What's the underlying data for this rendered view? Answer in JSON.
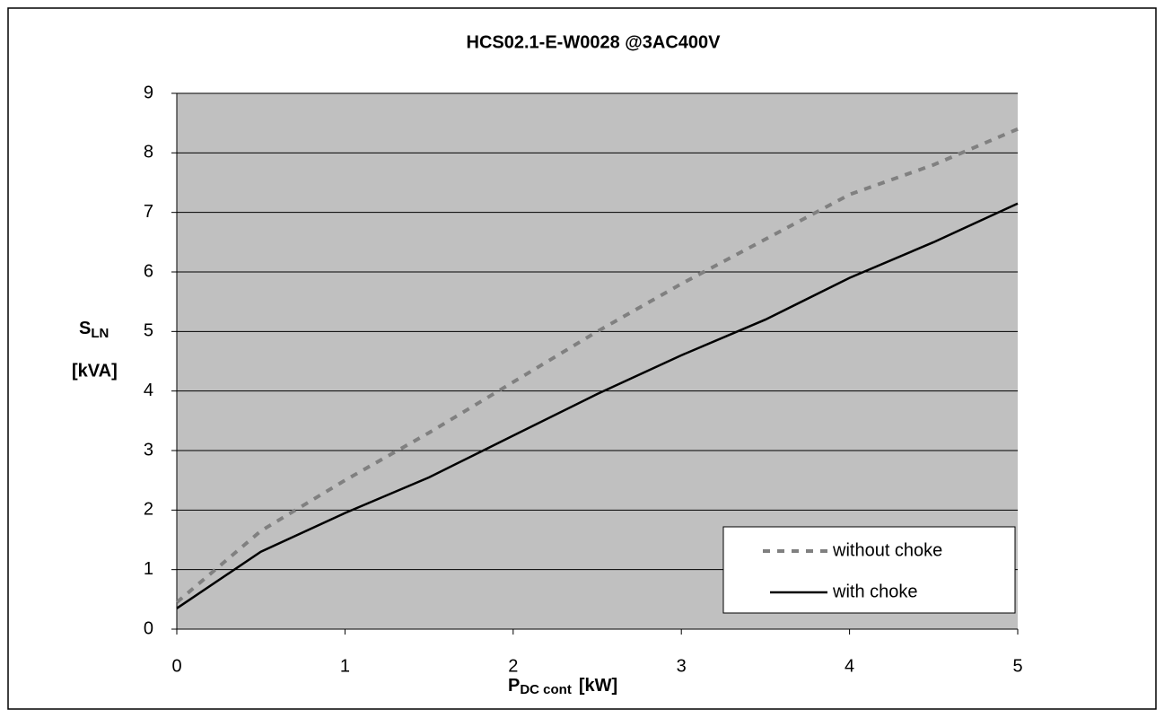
{
  "chart_data": {
    "type": "line",
    "title": "HCS02.1-E-W0028 @3AC400V",
    "y_label": {
      "main": "S",
      "sub": "LN",
      "unit": "[kVA]"
    },
    "x_label": {
      "main": "P",
      "sub": "DC cont",
      "unit": "[kW]"
    },
    "x": [
      0,
      0.5,
      1,
      1.5,
      2,
      2.5,
      3,
      3.5,
      4,
      4.5,
      5
    ],
    "series": [
      {
        "name": "without choke",
        "color": "#808080",
        "dash": true,
        "values": [
          0.45,
          1.65,
          2.5,
          3.3,
          4.15,
          5.0,
          5.8,
          6.55,
          7.3,
          7.8,
          8.4
        ]
      },
      {
        "name": "with choke",
        "color": "#000000",
        "dash": false,
        "values": [
          0.35,
          1.3,
          1.95,
          2.55,
          3.25,
          3.95,
          4.6,
          5.2,
          5.9,
          6.5,
          7.15
        ]
      }
    ],
    "xlim": [
      0,
      5
    ],
    "xticks": [
      0,
      1,
      2,
      3,
      4,
      5
    ],
    "ylim": [
      0,
      9
    ],
    "yticks": [
      0,
      1,
      2,
      3,
      4,
      5,
      6,
      7,
      8,
      9
    ],
    "grid": true,
    "legend": "lower right"
  }
}
